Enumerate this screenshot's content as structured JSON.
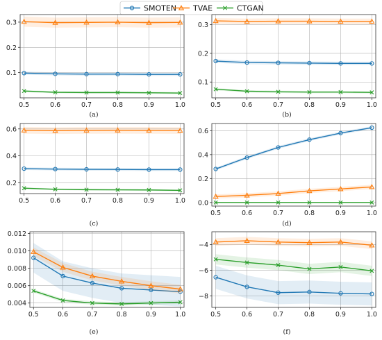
{
  "legend": {
    "entries": [
      {
        "name": "SMOTEN",
        "color": "#1f77b4",
        "marker": "circle"
      },
      {
        "name": "TVAE",
        "color": "#ff7f0e",
        "marker": "triangle"
      },
      {
        "name": "CTGAN",
        "color": "#2ca02c",
        "marker": "x"
      }
    ],
    "placement": "top-center"
  },
  "chart_data": [
    {
      "type": "line",
      "caption": "(a)",
      "x": [
        0.5,
        0.6,
        0.7,
        0.8,
        0.9,
        1.0
      ],
      "ylim": [
        0.0,
        0.33
      ],
      "yticks": [
        0.1,
        0.2,
        0.3
      ],
      "ytick_labels": [
        "0.1",
        "0.2",
        "0.3"
      ],
      "grid": true,
      "series": [
        {
          "name": "SMOTEN",
          "values": [
            0.098,
            0.095,
            0.094,
            0.094,
            0.093,
            0.093
          ],
          "band": 0.006
        },
        {
          "name": "TVAE",
          "values": [
            0.302,
            0.298,
            0.299,
            0.3,
            0.298,
            0.299
          ],
          "band": 0.02
        },
        {
          "name": "CTGAN",
          "values": [
            0.027,
            0.022,
            0.021,
            0.021,
            0.02,
            0.019
          ],
          "band": 0.004
        }
      ]
    },
    {
      "type": "line",
      "caption": "(b)",
      "x": [
        0.5,
        0.6,
        0.7,
        0.8,
        0.9,
        1.0
      ],
      "ylim": [
        0.045,
        0.335
      ],
      "yticks": [
        0.1,
        0.2,
        0.3
      ],
      "ytick_labels": [
        "0.1",
        "0.2",
        "0.3"
      ],
      "grid": true,
      "series": [
        {
          "name": "SMOTEN",
          "values": [
            0.173,
            0.168,
            0.167,
            0.166,
            0.165,
            0.165
          ],
          "band": 0.006
        },
        {
          "name": "TVAE",
          "values": [
            0.313,
            0.311,
            0.312,
            0.312,
            0.311,
            0.311
          ],
          "band": 0.01
        },
        {
          "name": "CTGAN",
          "values": [
            0.075,
            0.068,
            0.066,
            0.065,
            0.065,
            0.064
          ],
          "band": 0.004
        }
      ]
    },
    {
      "type": "line",
      "caption": "(c)",
      "x": [
        0.5,
        0.6,
        0.7,
        0.8,
        0.9,
        1.0
      ],
      "ylim": [
        0.12,
        0.64
      ],
      "yticks": [
        0.2,
        0.4,
        0.6
      ],
      "ytick_labels": [
        "0.2",
        "0.4",
        "0.6"
      ],
      "grid": true,
      "series": [
        {
          "name": "SMOTEN",
          "values": [
            0.305,
            0.302,
            0.3,
            0.299,
            0.298,
            0.298
          ],
          "band": 0.01
        },
        {
          "name": "TVAE",
          "values": [
            0.59,
            0.587,
            0.589,
            0.59,
            0.589,
            0.588
          ],
          "band": 0.025
        },
        {
          "name": "CTGAN",
          "values": [
            0.16,
            0.152,
            0.149,
            0.148,
            0.147,
            0.144
          ],
          "band": 0.006
        }
      ]
    },
    {
      "type": "line",
      "caption": "(d)",
      "x": [
        0.5,
        0.6,
        0.7,
        0.8,
        0.9,
        1.0
      ],
      "ylim": [
        -0.03,
        0.66
      ],
      "yticks": [
        0.0,
        0.2,
        0.4,
        0.6
      ],
      "ytick_labels": [
        "0.0",
        "0.2",
        "0.4",
        "0.6"
      ],
      "grid": true,
      "series": [
        {
          "name": "SMOTEN",
          "values": [
            0.28,
            0.375,
            0.46,
            0.525,
            0.58,
            0.625
          ],
          "band": 0.012
        },
        {
          "name": "TVAE",
          "values": [
            0.05,
            0.06,
            0.075,
            0.097,
            0.113,
            0.13
          ],
          "band": 0.018
        },
        {
          "name": "CTGAN",
          "values": [
            0.0,
            0.0,
            0.0,
            0.0,
            0.0,
            0.0
          ],
          "band": 0.0
        }
      ]
    },
    {
      "type": "line",
      "caption": "(e)",
      "x": [
        0.5,
        0.6,
        0.7,
        0.8,
        0.9,
        1.0
      ],
      "ylim": [
        0.0035,
        0.0122
      ],
      "yticks": [
        0.004,
        0.006,
        0.008,
        0.01,
        0.012
      ],
      "ytick_labels": [
        "0.004",
        "0.006",
        "0.008",
        "0.010",
        "0.012"
      ],
      "grid": true,
      "series": [
        {
          "name": "SMOTEN",
          "values": [
            0.0092,
            0.0071,
            0.0063,
            0.0057,
            0.0055,
            0.0053
          ],
          "band": 0.0017
        },
        {
          "name": "TVAE",
          "values": [
            0.0099,
            0.0081,
            0.0071,
            0.0065,
            0.006,
            0.0056
          ],
          "band": 0.0005
        },
        {
          "name": "CTGAN",
          "values": [
            0.0054,
            0.0043,
            0.004,
            0.0039,
            0.004,
            0.0041
          ],
          "band": 0.0002
        }
      ]
    },
    {
      "type": "line",
      "caption": "(f)",
      "x": [
        0.5,
        0.6,
        0.7,
        0.8,
        0.9,
        1.0
      ],
      "ylim": [
        -8.9,
        -3.0
      ],
      "yticks": [
        -8,
        -6,
        -4
      ],
      "ytick_labels": [
        "−8",
        "−6",
        "−4"
      ],
      "grid": true,
      "series": [
        {
          "name": "SMOTEN",
          "values": [
            -6.55,
            -7.3,
            -7.75,
            -7.7,
            -7.8,
            -7.85
          ],
          "band": 0.9
        },
        {
          "name": "TVAE",
          "values": [
            -3.8,
            -3.7,
            -3.8,
            -3.85,
            -3.8,
            -4.05
          ],
          "band": 0.3
        },
        {
          "name": "CTGAN",
          "values": [
            -5.15,
            -5.4,
            -5.6,
            -5.9,
            -5.75,
            -6.05
          ],
          "band": 0.4
        }
      ]
    }
  ]
}
